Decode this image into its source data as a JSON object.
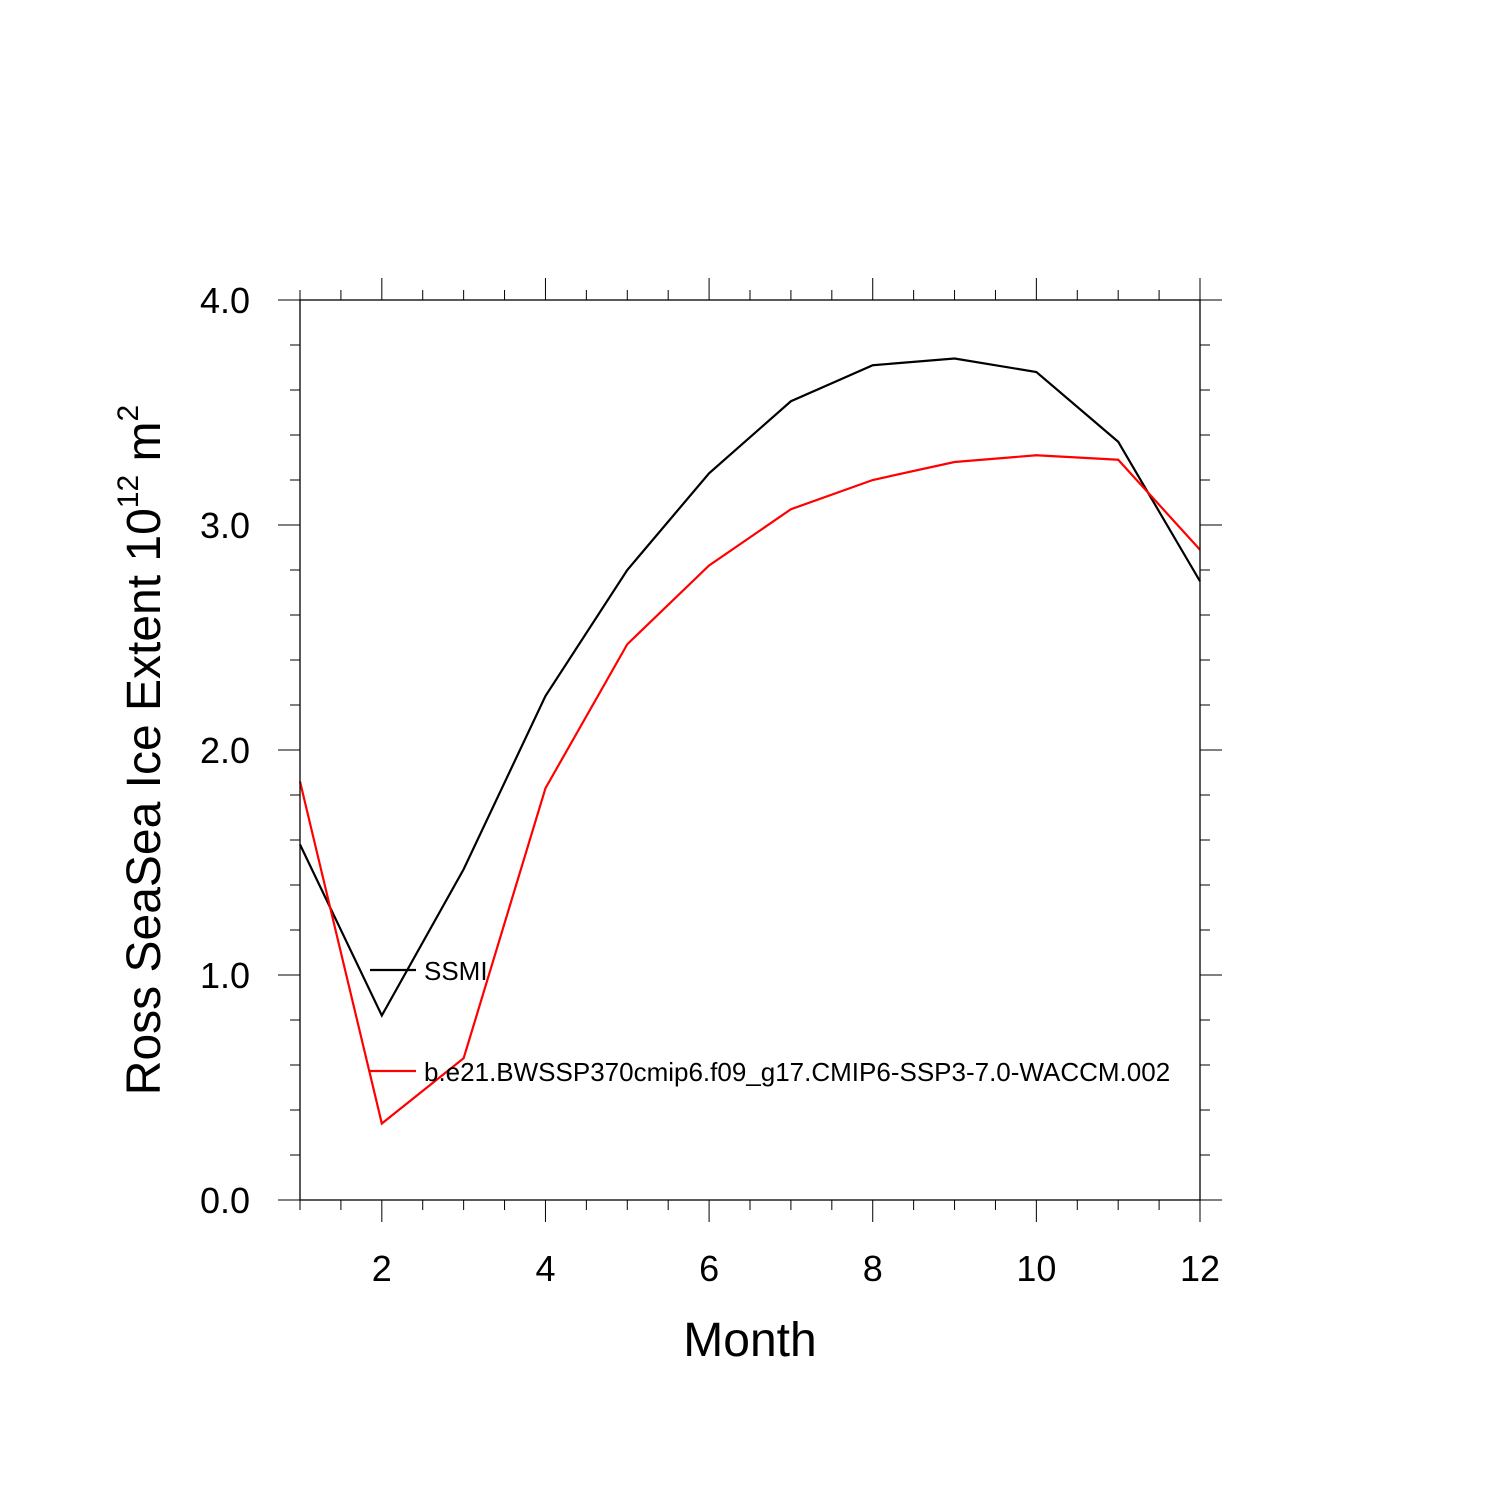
{
  "chart_data": {
    "type": "line",
    "xlabel": "Month",
    "ylabel": {
      "prefix": "Ross SeaSea Ice Extent 10",
      "superscript1": "12",
      "middle": " m",
      "superscript2": "2"
    },
    "xlim": [
      1,
      12
    ],
    "ylim": [
      0.0,
      4.0
    ],
    "x_ticks": [
      2,
      4,
      6,
      8,
      10,
      12
    ],
    "x_tick_labels": [
      "2",
      "4",
      "6",
      "8",
      "10",
      "12"
    ],
    "y_ticks": [
      0.0,
      1.0,
      2.0,
      3.0,
      4.0
    ],
    "y_tick_labels": [
      "0.0",
      "1.0",
      "2.0",
      "3.0",
      "4.0"
    ],
    "grid": false,
    "legend_placement": "lower-left, inside plot",
    "x": [
      1,
      2,
      3,
      4,
      5,
      6,
      7,
      8,
      9,
      10,
      11,
      12
    ],
    "series": [
      {
        "name": "SSMI",
        "color": "#000000",
        "values": [
          1.58,
          0.82,
          1.47,
          2.24,
          2.8,
          3.23,
          3.55,
          3.71,
          3.74,
          3.68,
          3.37,
          2.75
        ]
      },
      {
        "name": "b.e21.BWSSP370cmip6.f09_g17.CMIP6-SSP3-7.0-WACCM.002",
        "color": "#ff0000",
        "values": [
          1.86,
          0.34,
          0.63,
          1.83,
          2.47,
          2.82,
          3.07,
          3.2,
          3.28,
          3.31,
          3.29,
          2.89
        ]
      }
    ]
  }
}
